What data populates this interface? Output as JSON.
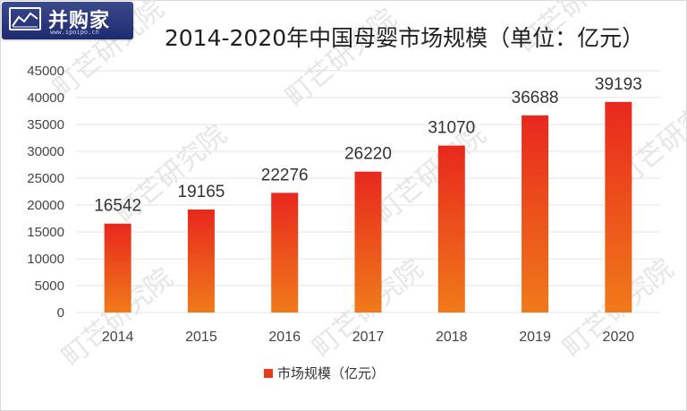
{
  "logo": {
    "text": "并购家",
    "url": "www.ipoipo.cn"
  },
  "watermark": {
    "text": "町芒研究院"
  },
  "chart_data": {
    "type": "bar",
    "title": "2014-2020年中国母婴市场规模（单位：亿元）",
    "xlabel": "",
    "ylabel": "",
    "categories": [
      "2014",
      "2015",
      "2016",
      "2017",
      "2018",
      "2019",
      "2020"
    ],
    "series": [
      {
        "name": "市场规模（亿元）",
        "values": [
          16542,
          19165,
          22276,
          26220,
          31070,
          36688,
          39193
        ]
      }
    ],
    "ylim": [
      0,
      45000
    ],
    "yticks": [
      "0",
      "5000",
      "10000",
      "15000",
      "20000",
      "25000",
      "30000",
      "35000",
      "40000",
      "45000"
    ],
    "grid": true,
    "legend": "bottom",
    "colors": {
      "bar_top": "#e8281e",
      "bar_bottom": "#f07a1a",
      "grid": "#e3e3e3",
      "title": "#1f1f1f"
    }
  }
}
